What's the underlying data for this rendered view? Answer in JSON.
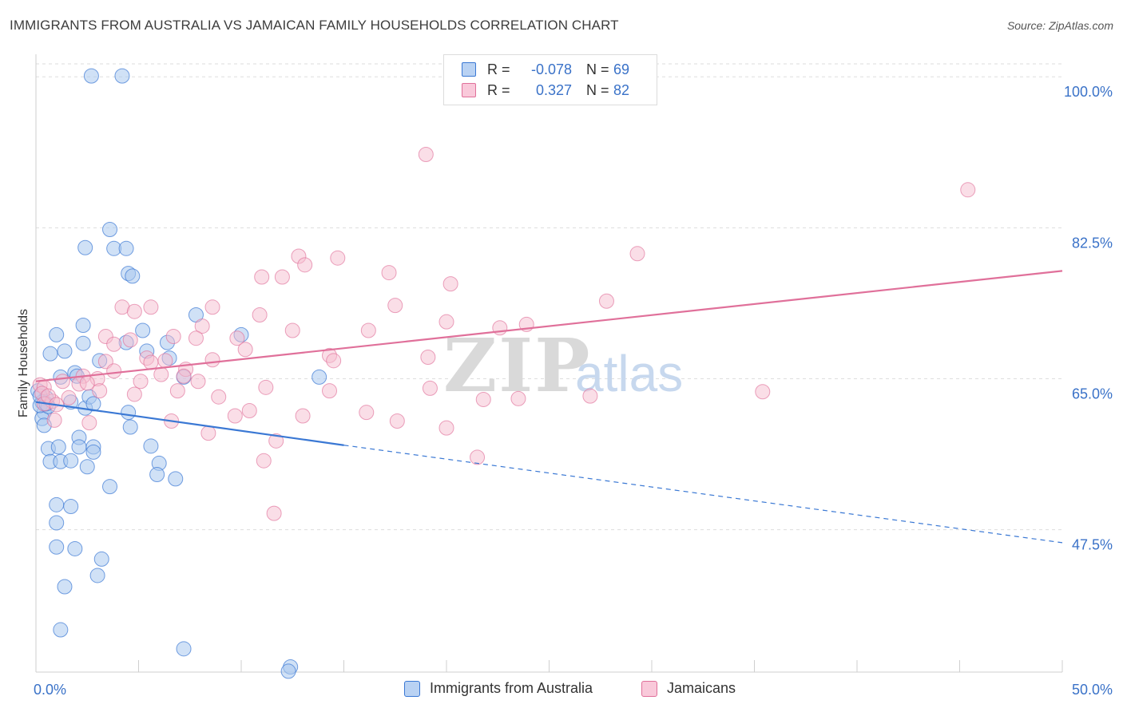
{
  "title": "IMMIGRANTS FROM AUSTRALIA VS JAMAICAN FAMILY HOUSEHOLDS CORRELATION CHART",
  "source": "Source: ZipAtlas.com",
  "watermark": {
    "part1": "ZIP",
    "part2": "atlas"
  },
  "colors": {
    "blue": "#3a78d4",
    "blue_fill": "#a9c8ef",
    "pink": "#e0709a",
    "pink_fill": "#f6bdd0",
    "tick_label": "#3a72c8",
    "grid": "#dddddd"
  },
  "legend": {
    "rows": [
      {
        "r_label": "R = ",
        "r_value": "-0.078",
        "n_label": "N = ",
        "n_value": "69"
      },
      {
        "r_label": "R = ",
        "r_value": "0.327",
        "n_label": "N = ",
        "n_value": "82"
      }
    ]
  },
  "bottom_legend": [
    "Immigrants from Australia",
    "Jamaicans"
  ],
  "chart_data": {
    "type": "scatter",
    "title": "IMMIGRANTS FROM AUSTRALIA VS JAMAICAN FAMILY HOUSEHOLDS CORRELATION CHART",
    "xlabel": "",
    "ylabel": "Family Households",
    "xlim": [
      0,
      50
    ],
    "ylim": [
      31,
      101.5
    ],
    "x_tick_labels": [
      "0.0%",
      "50.0%"
    ],
    "x_tick_values": [
      0,
      50
    ],
    "y_tick_labels": [
      "100.0%",
      "82.5%",
      "65.0%",
      "47.5%"
    ],
    "y_tick_values": [
      100,
      82.5,
      65,
      47.5
    ],
    "grid": true,
    "legend_position": "top-center",
    "series": [
      {
        "name": "Immigrants from Australia",
        "r": -0.078,
        "n": 69,
        "trend": {
          "x0": 0,
          "y0": 62.3,
          "x1": 15,
          "y1": 57.3,
          "dashed_to_x": 50,
          "dashed_to_y": 46.0
        },
        "points": [
          [
            2.7,
            100.1
          ],
          [
            4.2,
            100.1
          ],
          [
            3.6,
            82.3
          ],
          [
            2.4,
            80.2
          ],
          [
            3.8,
            80.1
          ],
          [
            4.4,
            80.1
          ],
          [
            4.5,
            77.2
          ],
          [
            4.7,
            76.9
          ],
          [
            7.8,
            72.4
          ],
          [
            2.3,
            71.2
          ],
          [
            5.2,
            70.6
          ],
          [
            1.0,
            70.1
          ],
          [
            6.4,
            69.2
          ],
          [
            10.0,
            70.1
          ],
          [
            2.3,
            69.1
          ],
          [
            4.4,
            69.2
          ],
          [
            0.7,
            67.9
          ],
          [
            1.4,
            68.2
          ],
          [
            3.1,
            67.1
          ],
          [
            5.4,
            68.2
          ],
          [
            6.5,
            67.4
          ],
          [
            0.1,
            63.6
          ],
          [
            0.5,
            62.8
          ],
          [
            1.2,
            65.2
          ],
          [
            1.9,
            65.7
          ],
          [
            2.0,
            65.3
          ],
          [
            0.3,
            62.3
          ],
          [
            1.7,
            62.3
          ],
          [
            2.4,
            61.6
          ],
          [
            2.6,
            62.9
          ],
          [
            2.8,
            62.1
          ],
          [
            0.4,
            61.1
          ],
          [
            0.3,
            60.4
          ],
          [
            4.5,
            61.1
          ],
          [
            4.6,
            59.4
          ],
          [
            0.4,
            59.6
          ],
          [
            2.1,
            58.2
          ],
          [
            7.2,
            65.2
          ],
          [
            13.8,
            65.2
          ],
          [
            0.6,
            56.9
          ],
          [
            1.1,
            57.1
          ],
          [
            2.1,
            57.1
          ],
          [
            2.8,
            57.1
          ],
          [
            5.6,
            57.2
          ],
          [
            2.8,
            56.5
          ],
          [
            0.7,
            55.4
          ],
          [
            1.2,
            55.4
          ],
          [
            1.7,
            55.5
          ],
          [
            2.5,
            54.8
          ],
          [
            6.0,
            55.2
          ],
          [
            5.9,
            53.9
          ],
          [
            6.8,
            53.4
          ],
          [
            3.6,
            52.5
          ],
          [
            1.0,
            50.4
          ],
          [
            1.7,
            50.2
          ],
          [
            1.0,
            48.3
          ],
          [
            1.0,
            45.5
          ],
          [
            1.9,
            45.3
          ],
          [
            3.2,
            44.1
          ],
          [
            3.0,
            42.2
          ],
          [
            1.4,
            40.9
          ],
          [
            1.2,
            35.9
          ],
          [
            7.2,
            33.7
          ],
          [
            12.4,
            31.6
          ],
          [
            12.3,
            31.1
          ],
          [
            0.2,
            61.9
          ],
          [
            0.6,
            61.8
          ],
          [
            0.2,
            63.0
          ],
          [
            0.5,
            62.1
          ]
        ]
      },
      {
        "name": "Jamaicans",
        "r": 0.327,
        "n": 82,
        "trend": {
          "x0": 0,
          "y0": 64.7,
          "x1": 50,
          "y1": 77.5
        },
        "points": [
          [
            19.0,
            91.0
          ],
          [
            45.4,
            86.9
          ],
          [
            12.8,
            79.2
          ],
          [
            14.7,
            79.0
          ],
          [
            29.3,
            79.5
          ],
          [
            13.1,
            78.2
          ],
          [
            11.0,
            76.8
          ],
          [
            12.0,
            76.8
          ],
          [
            17.2,
            77.3
          ],
          [
            20.2,
            76.0
          ],
          [
            27.8,
            74.0
          ],
          [
            8.6,
            73.3
          ],
          [
            4.2,
            73.3
          ],
          [
            5.6,
            73.3
          ],
          [
            10.9,
            72.4
          ],
          [
            17.5,
            73.5
          ],
          [
            4.8,
            72.8
          ],
          [
            20.0,
            71.6
          ],
          [
            8.1,
            71.1
          ],
          [
            12.5,
            70.6
          ],
          [
            16.2,
            70.6
          ],
          [
            22.6,
            70.9
          ],
          [
            23.9,
            71.3
          ],
          [
            3.4,
            69.9
          ],
          [
            6.7,
            69.9
          ],
          [
            4.6,
            69.5
          ],
          [
            7.8,
            69.7
          ],
          [
            9.8,
            69.7
          ],
          [
            3.8,
            69.0
          ],
          [
            10.2,
            68.4
          ],
          [
            14.3,
            67.7
          ],
          [
            19.1,
            67.5
          ],
          [
            5.4,
            67.4
          ],
          [
            3.4,
            67.0
          ],
          [
            5.6,
            66.9
          ],
          [
            6.3,
            67.1
          ],
          [
            14.5,
            67.1
          ],
          [
            8.6,
            67.2
          ],
          [
            3.8,
            65.9
          ],
          [
            7.3,
            66.1
          ],
          [
            2.3,
            65.3
          ],
          [
            6.1,
            65.5
          ],
          [
            7.2,
            65.3
          ],
          [
            0.2,
            64.3
          ],
          [
            1.3,
            64.7
          ],
          [
            2.1,
            64.4
          ],
          [
            3.0,
            65.0
          ],
          [
            5.1,
            64.7
          ],
          [
            7.9,
            64.7
          ],
          [
            0.4,
            64.0
          ],
          [
            11.2,
            64.0
          ],
          [
            14.3,
            63.6
          ],
          [
            19.2,
            63.9
          ],
          [
            3.1,
            63.6
          ],
          [
            4.8,
            63.2
          ],
          [
            6.9,
            63.6
          ],
          [
            1.6,
            62.8
          ],
          [
            0.3,
            63.3
          ],
          [
            27.0,
            63.0
          ],
          [
            21.8,
            62.6
          ],
          [
            8.9,
            62.9
          ],
          [
            23.5,
            62.7
          ],
          [
            35.4,
            63.5
          ],
          [
            0.8,
            62.4
          ],
          [
            10.4,
            61.3
          ],
          [
            16.1,
            61.1
          ],
          [
            9.7,
            60.7
          ],
          [
            13.0,
            60.7
          ],
          [
            6.6,
            60.1
          ],
          [
            17.6,
            60.1
          ],
          [
            20.0,
            59.3
          ],
          [
            2.6,
            59.9
          ],
          [
            0.9,
            60.2
          ],
          [
            8.4,
            58.7
          ],
          [
            11.7,
            57.8
          ],
          [
            21.5,
            55.9
          ],
          [
            11.1,
            55.5
          ],
          [
            11.6,
            49.4
          ],
          [
            0.4,
            62.1
          ],
          [
            0.6,
            63.0
          ],
          [
            1.0,
            62.0
          ],
          [
            2.5,
            64.5
          ]
        ]
      }
    ]
  }
}
